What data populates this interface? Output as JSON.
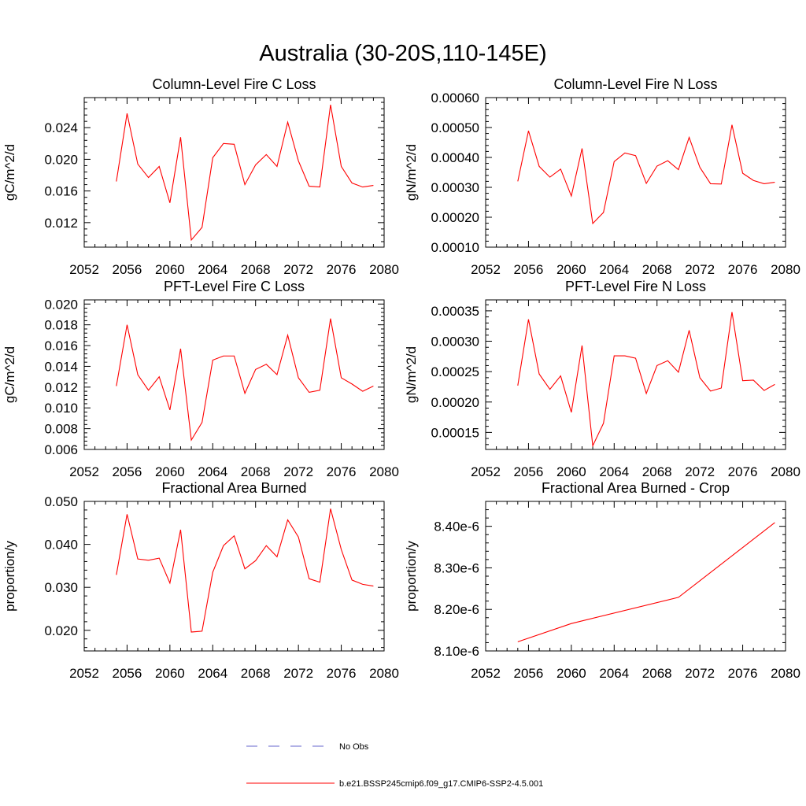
{
  "figure_title": "Australia (30-20S,110-145E)",
  "chart_data": [
    {
      "type": "line",
      "title": "Column-Level Fire C Loss",
      "xlabel": "",
      "ylabel": "gC/m^2/d",
      "xlim": [
        2052,
        2080
      ],
      "ylim": [
        0.0089,
        0.0278
      ],
      "xticks": [
        2052,
        2056,
        2060,
        2064,
        2068,
        2072,
        2076,
        2080
      ],
      "yticks": [
        0.012,
        0.016,
        0.02,
        0.024
      ],
      "ytick_labels": [
        "0.012",
        "0.016",
        "0.020",
        "0.024"
      ],
      "x": [
        2055,
        2056,
        2057,
        2058,
        2059,
        2060,
        2061,
        2062,
        2063,
        2064,
        2065,
        2066,
        2067,
        2068,
        2069,
        2070,
        2071,
        2072,
        2073,
        2074,
        2075,
        2076,
        2077,
        2078,
        2079
      ],
      "series": [
        {
          "values": [
            0.0172,
            0.0258,
            0.0194,
            0.0177,
            0.0191,
            0.0145,
            0.0228,
            0.0098,
            0.0114,
            0.0202,
            0.022,
            0.0219,
            0.0168,
            0.0193,
            0.0206,
            0.0191,
            0.0247,
            0.0198,
            0.0166,
            0.0165,
            0.0269,
            0.0191,
            0.017,
            0.0165,
            0.0167
          ],
          "color": "#ff0000"
        }
      ]
    },
    {
      "type": "line",
      "title": "Column-Level Fire N Loss",
      "xlabel": "",
      "ylabel": "gN/m^2/d",
      "xlim": [
        2052,
        2080
      ],
      "ylim": [
        0.0001,
        0.0006
      ],
      "xticks": [
        2052,
        2056,
        2060,
        2064,
        2068,
        2072,
        2076,
        2080
      ],
      "yticks": [
        0.0001,
        0.0002,
        0.0003,
        0.0004,
        0.0005,
        0.0006
      ],
      "ytick_labels": [
        "0.00010",
        "0.00020",
        "0.00030",
        "0.00040",
        "0.00050",
        "0.00060"
      ],
      "x": [
        2055,
        2056,
        2057,
        2058,
        2059,
        2060,
        2061,
        2062,
        2063,
        2064,
        2065,
        2066,
        2067,
        2068,
        2069,
        2070,
        2071,
        2072,
        2073,
        2074,
        2075,
        2076,
        2077,
        2078,
        2079
      ],
      "series": [
        {
          "values": [
            0.00032,
            0.000489,
            0.00037,
            0.000334,
            0.000361,
            0.000271,
            0.00043,
            0.000179,
            0.000216,
            0.000386,
            0.000415,
            0.000406,
            0.000313,
            0.000371,
            0.000389,
            0.000359,
            0.000467,
            0.000367,
            0.000312,
            0.000311,
            0.000509,
            0.000347,
            0.000323,
            0.000312,
            0.000317
          ],
          "color": "#ff0000"
        }
      ]
    },
    {
      "type": "line",
      "title": "PFT-Level Fire C Loss",
      "xlabel": "",
      "ylabel": "gC/m^2/d",
      "xlim": [
        2052,
        2080
      ],
      "ylim": [
        0.006,
        0.0204
      ],
      "xticks": [
        2052,
        2056,
        2060,
        2064,
        2068,
        2072,
        2076,
        2080
      ],
      "yticks": [
        0.006,
        0.008,
        0.01,
        0.012,
        0.014,
        0.016,
        0.018,
        0.02
      ],
      "ytick_labels": [
        "0.006",
        "0.008",
        "0.010",
        "0.012",
        "0.014",
        "0.016",
        "0.018",
        "0.020"
      ],
      "x": [
        2055,
        2056,
        2057,
        2058,
        2059,
        2060,
        2061,
        2062,
        2063,
        2064,
        2065,
        2066,
        2067,
        2068,
        2069,
        2070,
        2071,
        2072,
        2073,
        2074,
        2075,
        2076,
        2077,
        2078,
        2079
      ],
      "series": [
        {
          "values": [
            0.0121,
            0.018,
            0.0132,
            0.0117,
            0.013,
            0.0098,
            0.0157,
            0.0069,
            0.0086,
            0.0146,
            0.015,
            0.015,
            0.0114,
            0.0137,
            0.0142,
            0.0132,
            0.017,
            0.0129,
            0.0115,
            0.0117,
            0.0186,
            0.0129,
            0.0123,
            0.0116,
            0.0121
          ],
          "color": "#ff0000"
        }
      ]
    },
    {
      "type": "line",
      "title": "PFT-Level Fire N Loss",
      "xlabel": "",
      "ylabel": "gN/m^2/d",
      "xlim": [
        2052,
        2080
      ],
      "ylim": [
        0.000122,
        0.000368
      ],
      "xticks": [
        2052,
        2056,
        2060,
        2064,
        2068,
        2072,
        2076,
        2080
      ],
      "yticks": [
        0.00015,
        0.0002,
        0.00025,
        0.0003,
        0.00035
      ],
      "ytick_labels": [
        "0.00015",
        "0.00020",
        "0.00025",
        "0.00030",
        "0.00035"
      ],
      "x": [
        2055,
        2056,
        2057,
        2058,
        2059,
        2060,
        2061,
        2062,
        2063,
        2064,
        2065,
        2066,
        2067,
        2068,
        2069,
        2070,
        2071,
        2072,
        2073,
        2074,
        2075,
        2076,
        2077,
        2078,
        2079
      ],
      "series": [
        {
          "values": [
            0.000227,
            0.000336,
            0.000246,
            0.000221,
            0.000243,
            0.000183,
            0.000293,
            0.000128,
            0.000165,
            0.000276,
            0.000276,
            0.000272,
            0.000214,
            0.00026,
            0.000268,
            0.000249,
            0.000318,
            0.00024,
            0.000218,
            0.000223,
            0.000348,
            0.000235,
            0.000236,
            0.000219,
            0.000229
          ],
          "color": "#ff0000"
        }
      ]
    },
    {
      "type": "line",
      "title": "Fractional Area Burned",
      "xlabel": "",
      "ylabel": "proportion/y",
      "xlim": [
        2052,
        2080
      ],
      "ylim": [
        0.0152,
        0.05
      ],
      "xticks": [
        2052,
        2056,
        2060,
        2064,
        2068,
        2072,
        2076,
        2080
      ],
      "yticks": [
        0.02,
        0.03,
        0.04,
        0.05
      ],
      "ytick_labels": [
        "0.020",
        "0.030",
        "0.040",
        "0.050"
      ],
      "x": [
        2055,
        2056,
        2057,
        2058,
        2059,
        2060,
        2061,
        2062,
        2063,
        2064,
        2065,
        2066,
        2067,
        2068,
        2069,
        2070,
        2071,
        2072,
        2073,
        2074,
        2075,
        2076,
        2077,
        2078,
        2079
      ],
      "series": [
        {
          "values": [
            0.0329,
            0.047,
            0.0366,
            0.0363,
            0.0368,
            0.031,
            0.0434,
            0.0196,
            0.0198,
            0.0335,
            0.0397,
            0.042,
            0.0343,
            0.0362,
            0.0397,
            0.0371,
            0.0457,
            0.0417,
            0.032,
            0.0312,
            0.0483,
            0.0388,
            0.0317,
            0.0307,
            0.0303
          ],
          "color": "#ff0000"
        }
      ]
    },
    {
      "type": "line",
      "title": "Fractional Area Burned - Crop",
      "xlabel": "",
      "ylabel": "proportion/y",
      "xlim": [
        2052,
        2080
      ],
      "ylim": [
        8.1e-06,
        8.46e-06
      ],
      "xticks": [
        2052,
        2056,
        2060,
        2064,
        2068,
        2072,
        2076,
        2080
      ],
      "yticks": [
        8.1e-06,
        8.2e-06,
        8.3e-06,
        8.4e-06
      ],
      "ytick_labels": [
        "8.10e-6",
        "8.20e-6",
        "8.30e-6",
        "8.40e-6"
      ],
      "x": [
        2055,
        2060,
        2070,
        2079
      ],
      "series": [
        {
          "values": [
            8.122e-06,
            8.166e-06,
            8.229e-06,
            8.409e-06
          ],
          "color": "#ff0000"
        }
      ]
    }
  ],
  "legend": {
    "items": [
      {
        "label": "No Obs",
        "color": "#6666cc",
        "dashed": true
      },
      {
        "label": "b.e21.BSSP245cmip6.f09_g17.CMIP6-SSP2-4.5.001",
        "color": "#ff0000",
        "dashed": false
      }
    ]
  }
}
